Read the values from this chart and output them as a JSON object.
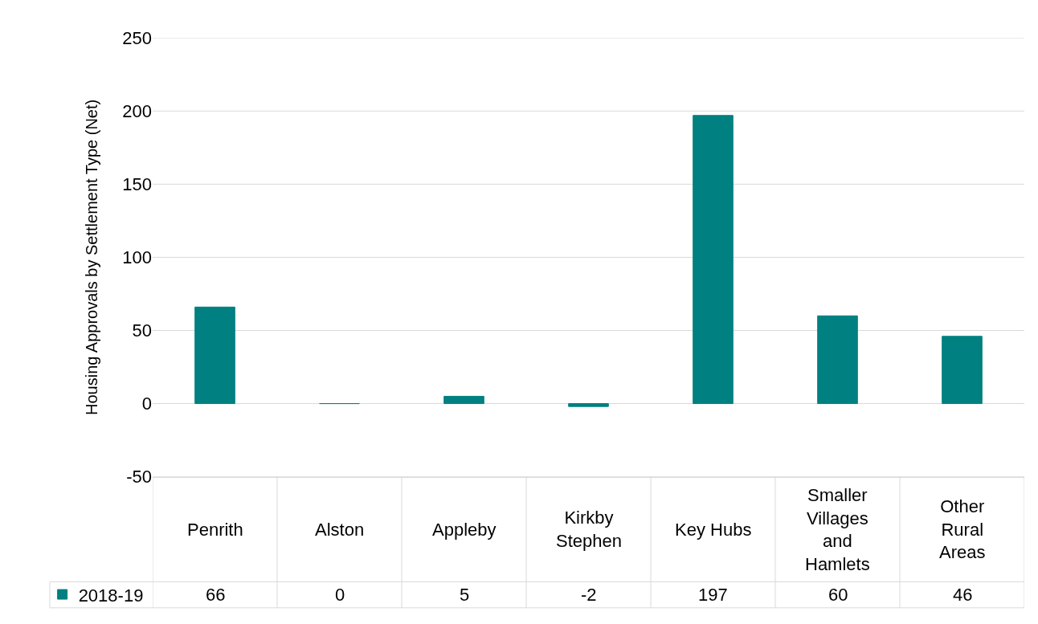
{
  "chart_data": {
    "type": "bar",
    "ylabel": "Housing Approvals by Settlement Type (Net)",
    "categories": [
      "Penrith",
      "Alston",
      "Appleby",
      "Kirkby Stephen",
      "Key Hubs",
      "Smaller Villages and Hamlets",
      "Other Rural Areas"
    ],
    "series": [
      {
        "name": "2018-19",
        "color": "#008080",
        "values": [
          66,
          0,
          5,
          -2,
          197,
          60,
          46
        ]
      }
    ],
    "ylim": [
      -50,
      250
    ],
    "yticks": [
      -50,
      0,
      50,
      100,
      150,
      200,
      250
    ],
    "grid": "y",
    "legend": "bottom left",
    "data_labels": true
  }
}
